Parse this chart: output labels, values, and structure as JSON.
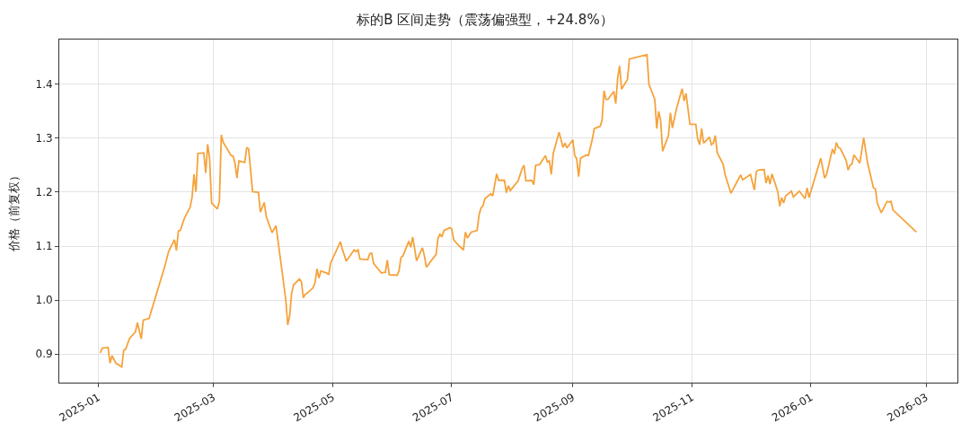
{
  "chart_data": {
    "type": "line",
    "title": "标的B 区间走势（震荡偏强型，+24.8%）",
    "ylabel": "价格（前复权）",
    "x": [
      "2025-01-02",
      "2025-01-03",
      "2025-01-06",
      "2025-01-07",
      "2025-01-08",
      "2025-01-10",
      "2025-01-13",
      "2025-01-14",
      "2025-01-15",
      "2025-01-17",
      "2025-01-20",
      "2025-01-21",
      "2025-01-23",
      "2025-01-24",
      "2025-01-27",
      "2025-02-04",
      "2025-02-06",
      "2025-02-09",
      "2025-02-10",
      "2025-02-11",
      "2025-02-12",
      "2025-02-14",
      "2025-02-17",
      "2025-02-18",
      "2025-02-19",
      "2025-02-20",
      "2025-02-21",
      "2025-02-24",
      "2025-02-25",
      "2025-02-26",
      "2025-02-27",
      "2025-02-28",
      "2025-03-03",
      "2025-03-04",
      "2025-03-05",
      "2025-03-06",
      "2025-03-10",
      "2025-03-11",
      "2025-03-12",
      "2025-03-13",
      "2025-03-14",
      "2025-03-17",
      "2025-03-18",
      "2025-03-19",
      "2025-03-21",
      "2025-03-24",
      "2025-03-25",
      "2025-03-27",
      "2025-03-28",
      "2025-03-31",
      "2025-04-02",
      "2025-04-07",
      "2025-04-08",
      "2025-04-09",
      "2025-04-10",
      "2025-04-11",
      "2025-04-14",
      "2025-04-15",
      "2025-04-16",
      "2025-04-17",
      "2025-04-18",
      "2025-04-21",
      "2025-04-22",
      "2025-04-23",
      "2025-04-24",
      "2025-04-25",
      "2025-04-28",
      "2025-04-29",
      "2025-04-30",
      "2025-05-05",
      "2025-05-06",
      "2025-05-08",
      "2025-05-12",
      "2025-05-13",
      "2025-05-14",
      "2025-05-15",
      "2025-05-19",
      "2025-05-20",
      "2025-05-21",
      "2025-05-22",
      "2025-05-26",
      "2025-05-27",
      "2025-05-28",
      "2025-05-29",
      "2025-05-30",
      "2025-06-03",
      "2025-06-04",
      "2025-06-05",
      "2025-06-06",
      "2025-06-09",
      "2025-06-10",
      "2025-06-11",
      "2025-06-13",
      "2025-06-16",
      "2025-06-17",
      "2025-06-18",
      "2025-06-23",
      "2025-06-24",
      "2025-06-25",
      "2025-06-26",
      "2025-06-27",
      "2025-06-30",
      "2025-07-01",
      "2025-07-02",
      "2025-07-04",
      "2025-07-07",
      "2025-07-08",
      "2025-07-09",
      "2025-07-11",
      "2025-07-14",
      "2025-07-15",
      "2025-07-16",
      "2025-07-17",
      "2025-07-18",
      "2025-07-21",
      "2025-07-22",
      "2025-07-24",
      "2025-07-25",
      "2025-07-28",
      "2025-07-29",
      "2025-07-30",
      "2025-07-31",
      "2025-08-04",
      "2025-08-06",
      "2025-08-07",
      "2025-08-08",
      "2025-08-11",
      "2025-08-12",
      "2025-08-13",
      "2025-08-15",
      "2025-08-18",
      "2025-08-19",
      "2025-08-20",
      "2025-08-21",
      "2025-08-22",
      "2025-08-25",
      "2025-08-27",
      "2025-08-28",
      "2025-08-29",
      "2025-09-01",
      "2025-09-02",
      "2025-09-03",
      "2025-09-04",
      "2025-09-05",
      "2025-09-08",
      "2025-09-09",
      "2025-09-11",
      "2025-09-12",
      "2025-09-15",
      "2025-09-16",
      "2025-09-17",
      "2025-09-18",
      "2025-09-19",
      "2025-09-22",
      "2025-09-23",
      "2025-09-24",
      "2025-09-25",
      "2025-09-26",
      "2025-09-29",
      "2025-09-30",
      "2025-10-09",
      "2025-10-10",
      "2025-10-13",
      "2025-10-14",
      "2025-10-15",
      "2025-10-16",
      "2025-10-17",
      "2025-10-20",
      "2025-10-21",
      "2025-10-22",
      "2025-10-24",
      "2025-10-27",
      "2025-10-28",
      "2025-10-29",
      "2025-10-31",
      "2025-11-03",
      "2025-11-04",
      "2025-11-05",
      "2025-11-06",
      "2025-11-07",
      "2025-11-10",
      "2025-11-11",
      "2025-11-12",
      "2025-11-13",
      "2025-11-14",
      "2025-11-17",
      "2025-11-18",
      "2025-11-19",
      "2025-11-21",
      "2025-11-26",
      "2025-11-27",
      "2025-12-01",
      "2025-12-03",
      "2025-12-04",
      "2025-12-05",
      "2025-12-08",
      "2025-12-09",
      "2025-12-10",
      "2025-12-11",
      "2025-12-12",
      "2025-12-15",
      "2025-12-16",
      "2025-12-17",
      "2025-12-18",
      "2025-12-19",
      "2025-12-22",
      "2025-12-23",
      "2025-12-26",
      "2025-12-29",
      "2025-12-30",
      "2025-12-31",
      "2026-01-06",
      "2026-01-08",
      "2026-01-09",
      "2026-01-12",
      "2026-01-13",
      "2026-01-14",
      "2026-01-15",
      "2026-01-16",
      "2026-01-19",
      "2026-01-20",
      "2026-01-21",
      "2026-01-22",
      "2026-01-23",
      "2026-01-26",
      "2026-01-28",
      "2026-01-30",
      "2026-02-02",
      "2026-02-03",
      "2026-02-04",
      "2026-02-06",
      "2026-02-09",
      "2026-02-10",
      "2026-02-11",
      "2026-02-12",
      "2026-02-24"
    ],
    "values": [
      0.902,
      0.911,
      0.912,
      0.883,
      0.897,
      0.883,
      0.876,
      0.907,
      0.909,
      0.929,
      0.941,
      0.958,
      0.928,
      0.963,
      0.966,
      1.062,
      1.09,
      1.112,
      1.092,
      1.128,
      1.129,
      1.151,
      1.172,
      1.19,
      1.233,
      1.201,
      1.272,
      1.273,
      1.236,
      1.289,
      1.262,
      1.18,
      1.169,
      1.184,
      1.306,
      1.292,
      1.268,
      1.267,
      1.254,
      1.226,
      1.258,
      1.255,
      1.283,
      1.28,
      1.201,
      1.2,
      1.163,
      1.181,
      1.155,
      1.125,
      1.138,
      1.001,
      0.954,
      0.971,
      1.013,
      1.028,
      1.039,
      1.034,
      1.004,
      1.011,
      1.013,
      1.023,
      1.032,
      1.058,
      1.041,
      1.054,
      1.05,
      1.047,
      1.069,
      1.108,
      1.094,
      1.072,
      1.093,
      1.09,
      1.093,
      1.076,
      1.075,
      1.086,
      1.087,
      1.068,
      1.05,
      1.051,
      1.051,
      1.074,
      1.047,
      1.046,
      1.054,
      1.079,
      1.082,
      1.109,
      1.098,
      1.117,
      1.073,
      1.097,
      1.082,
      1.061,
      1.085,
      1.115,
      1.122,
      1.117,
      1.129,
      1.134,
      1.132,
      1.112,
      1.103,
      1.093,
      1.126,
      1.115,
      1.126,
      1.129,
      1.158,
      1.171,
      1.175,
      1.188,
      1.197,
      1.193,
      1.234,
      1.222,
      1.222,
      1.199,
      1.212,
      1.203,
      1.221,
      1.243,
      1.25,
      1.221,
      1.222,
      1.214,
      1.25,
      1.251,
      1.268,
      1.256,
      1.258,
      1.233,
      1.272,
      1.311,
      1.283,
      1.291,
      1.282,
      1.297,
      1.268,
      1.262,
      1.229,
      1.263,
      1.269,
      1.268,
      1.298,
      1.318,
      1.322,
      1.333,
      1.388,
      1.372,
      1.372,
      1.387,
      1.364,
      1.412,
      1.434,
      1.391,
      1.409,
      1.447,
      1.455,
      1.4,
      1.372,
      1.318,
      1.35,
      1.333,
      1.276,
      1.305,
      1.347,
      1.319,
      1.353,
      1.392,
      1.369,
      1.383,
      1.326,
      1.326,
      1.298,
      1.288,
      1.318,
      1.291,
      1.302,
      1.288,
      1.291,
      1.305,
      1.273,
      1.252,
      1.233,
      1.221,
      1.198,
      1.232,
      1.223,
      1.233,
      1.204,
      1.238,
      1.241,
      1.242,
      1.217,
      1.231,
      1.215,
      1.234,
      1.201,
      1.174,
      1.19,
      1.18,
      1.193,
      1.202,
      1.191,
      1.202,
      1.188,
      1.208,
      1.19,
      1.263,
      1.226,
      1.233,
      1.28,
      1.271,
      1.292,
      1.283,
      1.281,
      1.259,
      1.241,
      1.25,
      1.252,
      1.269,
      1.254,
      1.301,
      1.254,
      1.208,
      1.206,
      1.179,
      1.162,
      1.183,
      1.182,
      1.183,
      1.167,
      1.126
    ],
    "color": "#f5a33c",
    "xlim": [
      "2024-12-12",
      "2026-03-17"
    ],
    "xticks": [
      "2025-01",
      "2025-03",
      "2025-05",
      "2025-07",
      "2025-09",
      "2025-11",
      "2026-01",
      "2026-03"
    ],
    "ylim": [
      0.847,
      1.483
    ],
    "yticks": [
      {
        "value": 0.9,
        "label": "0.9"
      },
      {
        "value": 1.0,
        "label": "1.0"
      },
      {
        "value": 1.1,
        "label": "1.1"
      },
      {
        "value": 1.2,
        "label": "1.2"
      },
      {
        "value": 1.3,
        "label": "1.3"
      },
      {
        "value": 1.4,
        "label": "1.4"
      }
    ],
    "grid": true
  }
}
